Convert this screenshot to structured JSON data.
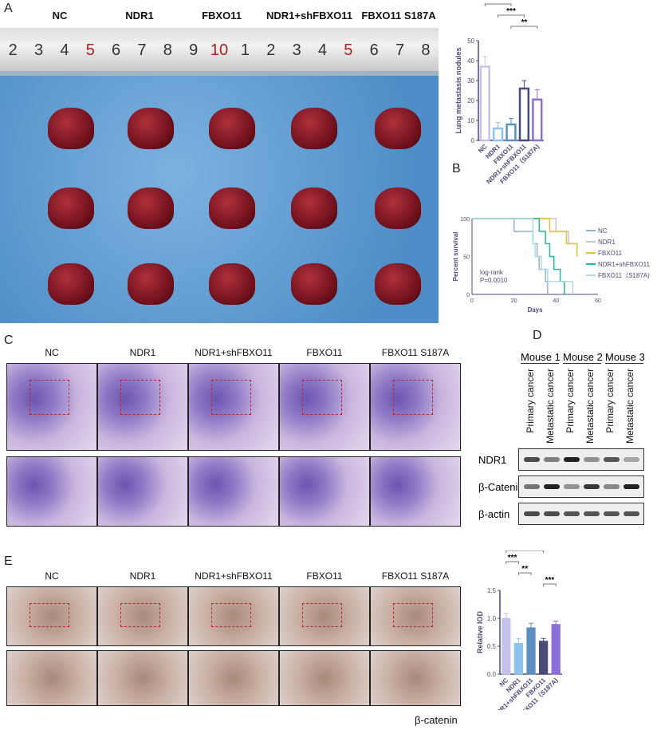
{
  "panels": {
    "a": "A",
    "b": "B",
    "c": "C",
    "d": "D",
    "e": "E"
  },
  "groups_a": [
    "NC",
    "NDR1",
    "FBXO11",
    "NDR1+shFBXO11",
    "FBXO11 S187A"
  ],
  "groups_c": [
    "NC",
    "NDR1",
    "NDR1+shFBXO11",
    "FBXO11",
    "FBXO11 S187A"
  ],
  "groups_e": [
    "NC",
    "NDR1",
    "NDR1+shFBXO11",
    "FBXO11",
    "FBXO11 S187A"
  ],
  "ruler_numbers": [
    "2",
    "3",
    "4",
    "5",
    "6",
    "7",
    "8",
    "9",
    "10",
    "1",
    "2",
    "3",
    "4",
    "5",
    "6",
    "7",
    "8"
  ],
  "ihc_stain": "β-catenin",
  "western": {
    "mice": [
      "Mouse 1",
      "Mouse 2",
      "Mouse 3"
    ],
    "lanes": [
      "Primary cancer",
      "Metastatic cancer",
      "Primary cancer",
      "Metastatic cancer",
      "Primary cancer",
      "Metastatic cancer"
    ],
    "rows": [
      {
        "label": "NDR1",
        "intensity": [
          0.8,
          0.55,
          1.0,
          0.45,
          0.75,
          0.35
        ]
      },
      {
        "label": "β-Catenin",
        "intensity": [
          0.6,
          1.0,
          0.45,
          0.9,
          0.5,
          1.0
        ]
      },
      {
        "label": "β-actin",
        "intensity": [
          0.8,
          0.8,
          0.75,
          0.75,
          0.75,
          0.75
        ]
      }
    ]
  },
  "chart_data": [
    {
      "type": "bar",
      "ylabel": "Lung metastasis nodules",
      "ylim": [
        0,
        50
      ],
      "yticks": [
        0,
        10,
        20,
        30,
        40,
        50
      ],
      "categories": [
        "NC",
        "NDR1",
        "FBXO11",
        "NDR1+shFBXO11",
        "FBXO11（S187A)"
      ],
      "values": [
        37,
        6,
        8,
        26,
        20.5
      ],
      "errors": [
        5,
        3,
        3,
        4,
        5
      ],
      "colors": [
        "#c5c3ee",
        "#8fc3ee",
        "#5b8fc0",
        "#4a4a78",
        "#8c6fd6"
      ],
      "significance": [
        {
          "from": 0,
          "to": 1,
          "label": "***"
        },
        {
          "from": 0,
          "to": 2,
          "label": "***"
        },
        {
          "from": 1,
          "to": 3,
          "label": "***"
        },
        {
          "from": 2,
          "to": 4,
          "label": "**"
        }
      ]
    },
    {
      "type": "line",
      "xlabel": "Days",
      "ylabel": "Percent survival",
      "xlim": [
        0,
        60
      ],
      "ylim": [
        0,
        100
      ],
      "xticks": [
        0,
        20,
        40,
        60
      ],
      "yticks": [
        0,
        50,
        100
      ],
      "annotation": [
        "log-rank",
        "P=0.0010"
      ],
      "series": [
        {
          "name": "NC",
          "color": "#9bb0c8",
          "x": [
            0,
            20,
            29,
            31,
            32,
            35,
            36
          ],
          "y": [
            100,
            83,
            67,
            50,
            33,
            17,
            0
          ]
        },
        {
          "name": "NDR1",
          "color": "#c8c8cc",
          "x": [
            0,
            40,
            46,
            50
          ],
          "y": [
            100,
            83,
            67,
            50
          ]
        },
        {
          "name": "FBXO11",
          "color": "#e5c22a",
          "x": [
            0,
            37,
            45,
            50
          ],
          "y": [
            100,
            83,
            67,
            50
          ]
        },
        {
          "name": "NDR1+shFBXO11",
          "color": "#2bb5a0",
          "x": [
            0,
            32,
            35,
            37,
            39,
            42,
            44
          ],
          "y": [
            100,
            83,
            67,
            50,
            33,
            17,
            0
          ]
        },
        {
          "name": "FBXO11（S187A)",
          "color": "#a8dde8",
          "x": [
            0,
            29,
            30,
            33,
            36,
            48
          ],
          "y": [
            100,
            67,
            50,
            33,
            17,
            0
          ]
        }
      ]
    },
    {
      "type": "bar",
      "ylabel": "Relative IOD",
      "ylim": [
        0,
        1.5
      ],
      "yticks": [
        "0.0",
        "0.5",
        "1.0",
        "1.5"
      ],
      "categories": [
        "NC",
        "NDR1",
        "NDR1+shFBXO11",
        "FBXO11",
        "FBXO11（S187A)"
      ],
      "values": [
        1.0,
        0.55,
        0.83,
        0.59,
        0.89
      ],
      "errors": [
        0.09,
        0.09,
        0.08,
        0.05,
        0.06
      ],
      "colors": [
        "#c5c3ee",
        "#8fc3ee",
        "#5b8fc0",
        "#4a4a78",
        "#8c6fd6"
      ],
      "significance": [
        {
          "from": 0,
          "to": 3,
          "label": "***"
        },
        {
          "from": 0,
          "to": 1,
          "label": "***"
        },
        {
          "from": 1,
          "to": 2,
          "label": "**"
        },
        {
          "from": 3,
          "to": 4,
          "label": "***"
        }
      ]
    }
  ]
}
